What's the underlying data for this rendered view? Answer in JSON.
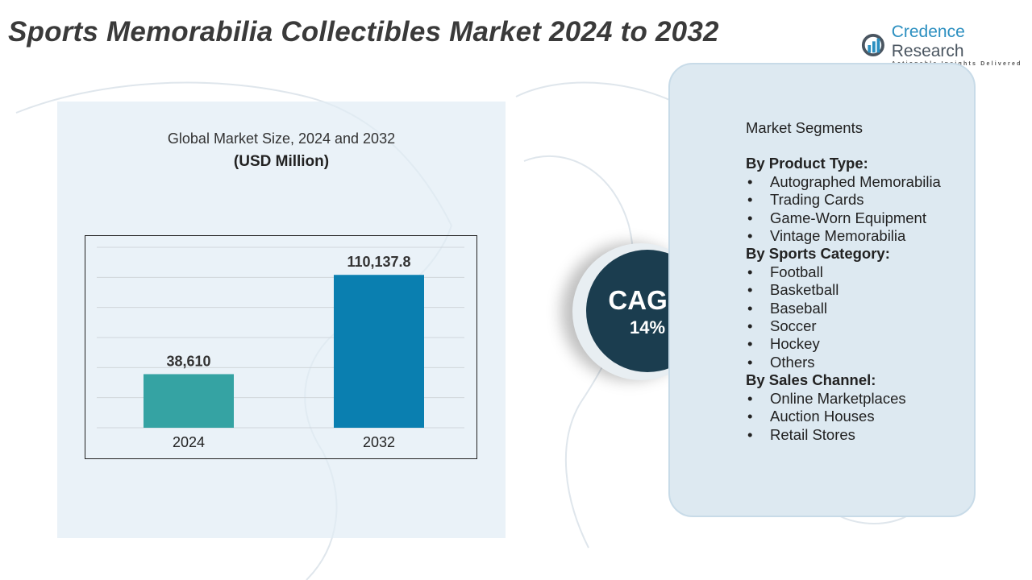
{
  "title": "Sports Memorabilia Collectibles Market 2024 to 2032",
  "logo": {
    "name_part1": "Credence",
    "name_part2": " Research",
    "tagline": "Actionable Insights Delivered"
  },
  "chart_header": {
    "subtitle": "Global Market Size, 2024 and 2032",
    "unit": "(USD Million)"
  },
  "chart_data": {
    "type": "bar",
    "title": "Global Market Size, 2024 and 2032",
    "ylabel": "(USD Million)",
    "categories": [
      "2024",
      "2032"
    ],
    "values": [
      38610,
      110137.8
    ],
    "value_labels": [
      "38,610",
      "110,137.8"
    ],
    "colors": [
      "#35a3a3",
      "#0a7fb0"
    ],
    "ylim": [
      0,
      130000
    ],
    "grid": true
  },
  "cagr": {
    "label": "CAGR",
    "value": "14%"
  },
  "segments": {
    "heading": "Market Segments",
    "groups": [
      {
        "title": "By Product Type:",
        "items": [
          "Autographed Memorabilia",
          "Trading Cards",
          "Game-Worn Equipment",
          "Vintage Memorabilia"
        ]
      },
      {
        "title": "By Sports Category:",
        "items": [
          "Football",
          "Basketball",
          "Baseball",
          "Soccer",
          "Hockey",
          "Others"
        ]
      },
      {
        "title": "By Sales Channel:",
        "items": [
          "Online Marketplaces",
          "Auction Houses",
          "Retail Stores"
        ]
      }
    ]
  }
}
